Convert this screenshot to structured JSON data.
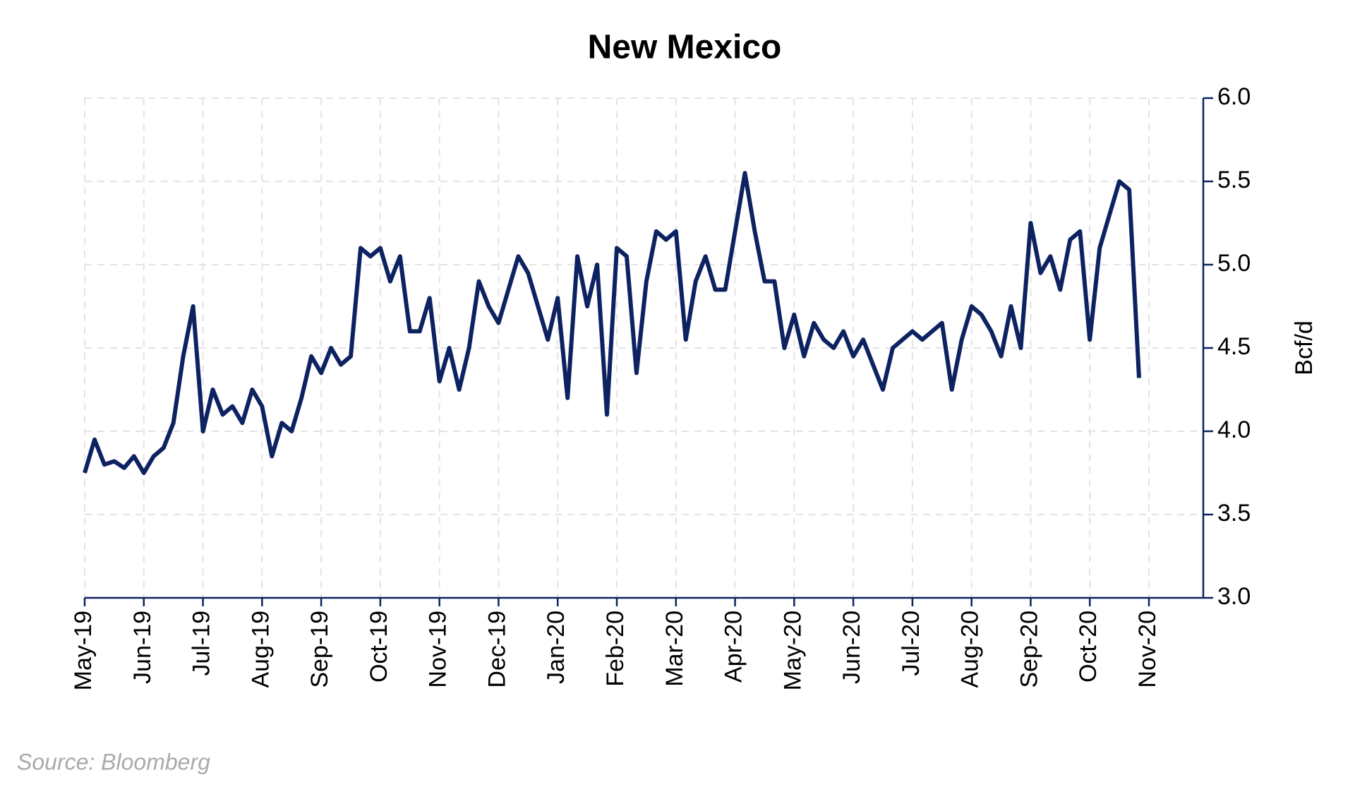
{
  "chart_data": {
    "type": "line",
    "title": "New Mexico",
    "y_label": "Bcf/d",
    "source": "Source: Bloomberg",
    "categories": [
      "May-19",
      null,
      null,
      null,
      null,
      null,
      "Jun-19",
      null,
      null,
      null,
      null,
      null,
      "Jul-19",
      null,
      null,
      null,
      null,
      null,
      "Aug-19",
      null,
      null,
      null,
      null,
      null,
      "Sep-19",
      null,
      null,
      null,
      null,
      null,
      "Oct-19",
      null,
      null,
      null,
      null,
      null,
      "Nov-19",
      null,
      null,
      null,
      null,
      null,
      "Dec-19",
      null,
      null,
      null,
      null,
      null,
      "Jan-20",
      null,
      null,
      null,
      null,
      null,
      "Feb-20",
      null,
      null,
      null,
      null,
      null,
      "Mar-20",
      null,
      null,
      null,
      null,
      null,
      "Apr-20",
      null,
      null,
      null,
      null,
      null,
      "May-20",
      null,
      null,
      null,
      null,
      null,
      "Jun-20",
      null,
      null,
      null,
      null,
      null,
      "Jul-20",
      null,
      null,
      null,
      null,
      null,
      "Aug-20",
      null,
      null,
      null,
      null,
      null,
      "Sep-20",
      null,
      null,
      null,
      null,
      null,
      "Oct-20",
      null,
      null,
      null,
      null,
      null,
      "Nov-20"
    ],
    "series": [
      {
        "name": "New Mexico",
        "color": "#0d2260",
        "values": [
          3.75,
          3.95,
          3.8,
          3.82,
          3.78,
          3.85,
          3.75,
          3.85,
          3.9,
          4.05,
          4.45,
          4.75,
          4.0,
          4.25,
          4.1,
          4.15,
          4.05,
          4.25,
          4.15,
          3.85,
          4.05,
          4.0,
          4.2,
          4.45,
          4.35,
          4.5,
          4.4,
          4.45,
          5.1,
          5.05,
          5.1,
          4.9,
          5.05,
          4.6,
          4.6,
          4.8,
          4.3,
          4.5,
          4.25,
          4.5,
          4.9,
          4.75,
          4.65,
          4.85,
          5.05,
          4.95,
          4.75,
          4.55,
          4.8,
          4.2,
          5.05,
          4.75,
          5.0,
          4.1,
          5.1,
          5.05,
          4.35,
          4.9,
          5.2,
          5.15,
          5.2,
          4.55,
          4.9,
          5.05,
          4.85,
          4.85,
          5.2,
          5.55,
          5.2,
          4.9,
          4.9,
          4.5,
          4.7,
          4.45,
          4.65,
          4.55,
          4.5,
          4.6,
          4.45,
          4.55,
          4.4,
          4.25,
          4.5,
          4.55,
          4.6,
          4.55,
          4.6,
          4.65,
          4.25,
          4.55,
          4.75,
          4.7,
          4.6,
          4.45,
          4.75,
          4.5,
          5.25,
          4.95,
          5.05,
          4.85,
          5.15,
          5.2,
          4.55,
          5.1,
          5.3,
          5.5,
          5.45,
          4.32,
          null
        ]
      }
    ],
    "ylim": [
      3.0,
      6.0
    ],
    "yticks": [
      {
        "value": 3.0,
        "label": "3.0"
      },
      {
        "value": 3.5,
        "label": "3.5"
      },
      {
        "value": 4.0,
        "label": "4.0"
      },
      {
        "value": 4.5,
        "label": "4.5"
      },
      {
        "value": 5.0,
        "label": "5.0"
      },
      {
        "value": 5.5,
        "label": "5.5"
      },
      {
        "value": 6.0,
        "label": "6.0"
      }
    ],
    "grid": true
  }
}
